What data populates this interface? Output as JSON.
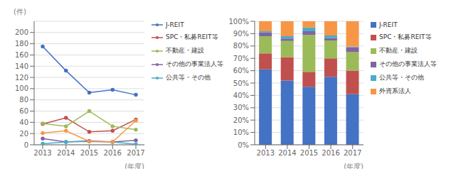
{
  "chart_data": [
    {
      "type": "line",
      "categories": [
        "2013",
        "2014",
        "2015",
        "2016",
        "2017"
      ],
      "series": [
        {
          "name": "J-REIT",
          "color": "#4472C4",
          "values": [
            175,
            132,
            93,
            98,
            89
          ]
        },
        {
          "name": "SPC・私募REIT等",
          "color": "#C0504D",
          "values": [
            37,
            48,
            23,
            25,
            45
          ]
        },
        {
          "name": "不動産・建設",
          "color": "#9BBB59",
          "values": [
            38,
            33,
            60,
            33,
            27
          ]
        },
        {
          "name": "その他の事業法人等",
          "color": "#8064A2",
          "values": [
            11,
            5,
            7,
            5,
            8
          ]
        },
        {
          "name": "公共等・その他",
          "color": "#4BACC6",
          "values": [
            2,
            5,
            6,
            5,
            1
          ]
        },
        {
          "color": "#F79646",
          "values": [
            21,
            25,
            6,
            5,
            43
          ]
        }
      ],
      "ylabel": "(件)",
      "xlabel": "(年度)",
      "ylim": [
        0,
        220
      ],
      "yticks": [
        0,
        20,
        40,
        60,
        80,
        100,
        120,
        140,
        160,
        180,
        200
      ],
      "grid": true,
      "marker": "circle",
      "legend": "right"
    },
    {
      "type": "bar",
      "stacked": true,
      "categories": [
        "2013",
        "2014",
        "2015",
        "2016",
        "2017"
      ],
      "series": [
        {
          "name": "J-REIT",
          "color": "#4472C4",
          "values": [
            0.61,
            0.52,
            0.47,
            0.55,
            0.41
          ]
        },
        {
          "name": "SPC・私募REIT等",
          "color": "#C0504D",
          "values": [
            0.13,
            0.19,
            0.12,
            0.15,
            0.19
          ]
        },
        {
          "name": "不動産・建設",
          "color": "#9BBB59",
          "values": [
            0.14,
            0.13,
            0.3,
            0.145,
            0.15
          ]
        },
        {
          "name": "その他の事業法人等",
          "color": "#8064A2",
          "values": [
            0.03,
            0.02,
            0.03,
            0.02,
            0.04
          ]
        },
        {
          "name": "公共等・その他",
          "color": "#4BACC6",
          "values": [
            0.01,
            0.02,
            0.03,
            0.02,
            0.005
          ]
        },
        {
          "name": "外資系法人",
          "color": "#F79646",
          "values": [
            0.08,
            0.12,
            0.05,
            0.115,
            0.205
          ]
        }
      ],
      "xlabel": "(年度)",
      "ylim": [
        0,
        1.0
      ],
      "yticks": [
        {
          "value": 0,
          "label": "0%"
        },
        {
          "value": 0.1,
          "label": "10%"
        },
        {
          "value": 0.2,
          "label": "20%"
        },
        {
          "value": 0.3,
          "label": "30%"
        },
        {
          "value": 0.4,
          "label": "40%"
        },
        {
          "value": 0.5,
          "label": "50%"
        },
        {
          "value": 0.6,
          "label": "60%"
        },
        {
          "value": 0.7,
          "label": "70%"
        },
        {
          "value": 0.8,
          "label": "80%"
        },
        {
          "value": 0.9,
          "label": "90%"
        },
        {
          "value": 1.0,
          "label": "100%"
        }
      ],
      "grid": true,
      "legend": "right"
    }
  ]
}
